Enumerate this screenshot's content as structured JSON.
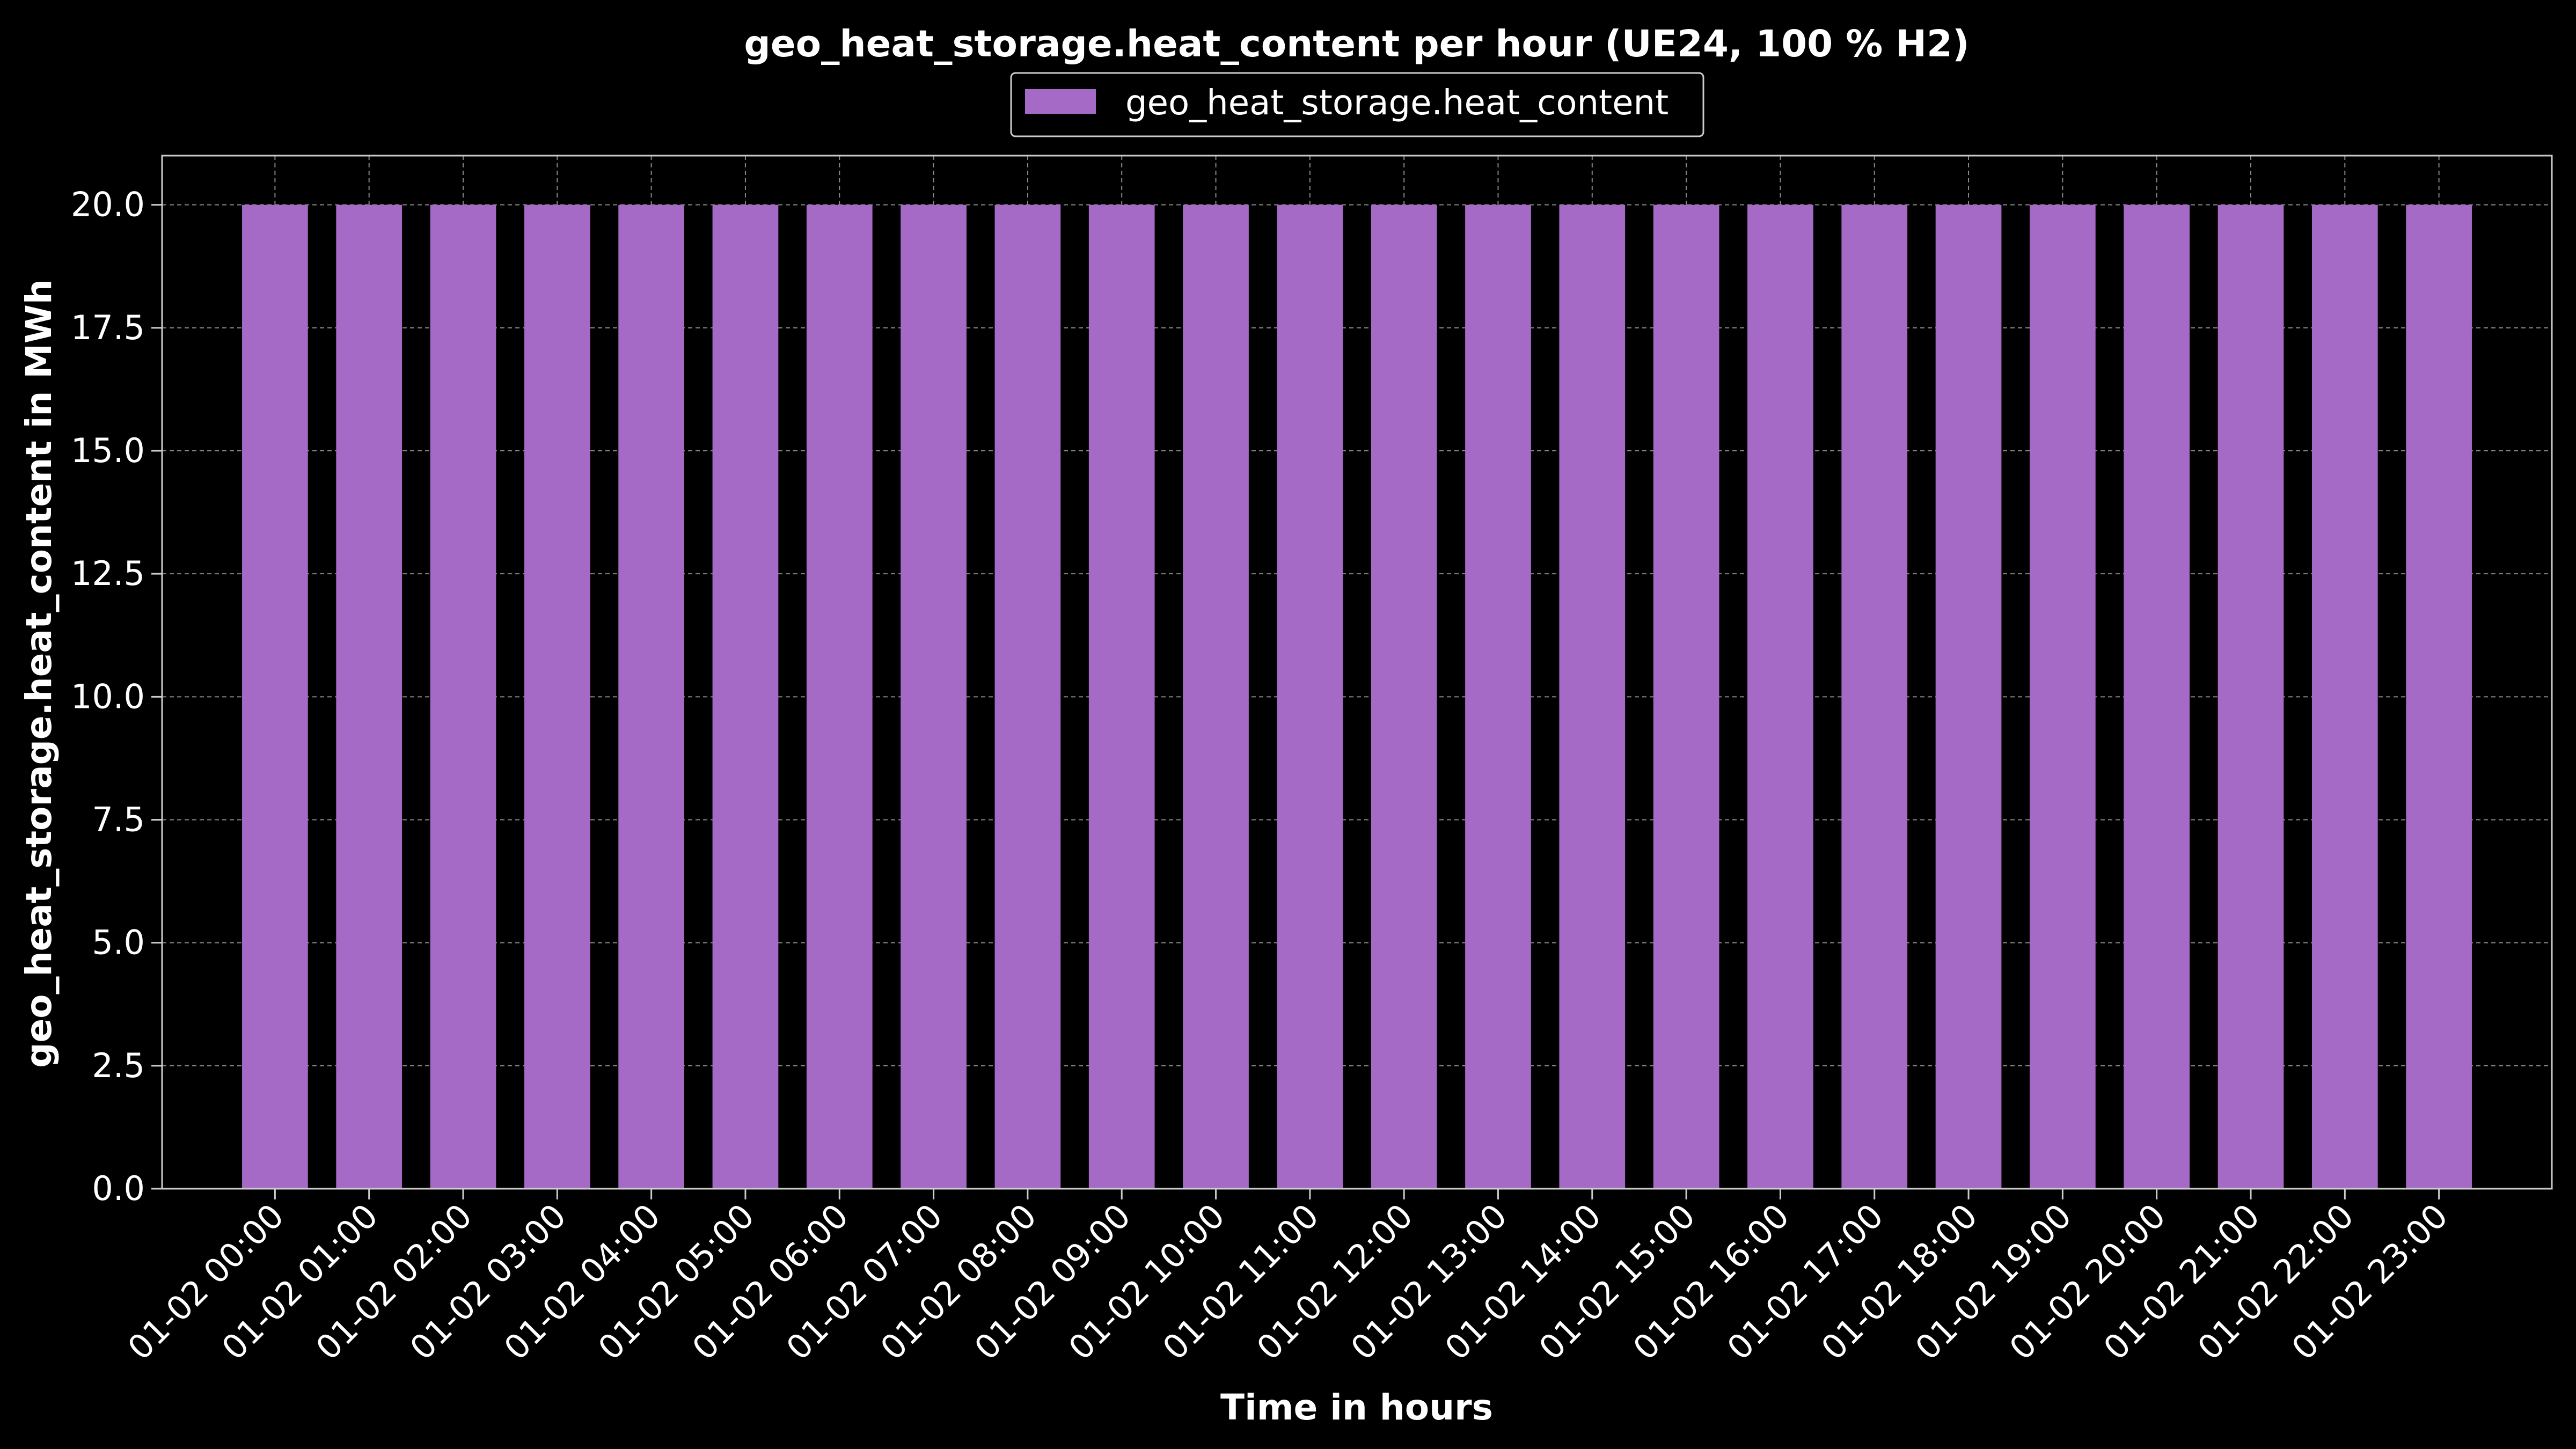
{
  "chart_data": {
    "type": "bar",
    "title": "geo_heat_storage.heat_content per hour (UE24, 100 % H2)",
    "xlabel": "Time in hours",
    "ylabel": "geo_heat_storage.heat_content in MWh",
    "ylim": [
      0,
      21
    ],
    "yticks": [
      "0.0",
      "2.5",
      "5.0",
      "7.5",
      "10.0",
      "12.5",
      "15.0",
      "17.5",
      "20.0"
    ],
    "categories": [
      "01-02 00:00",
      "01-02 01:00",
      "01-02 02:00",
      "01-02 03:00",
      "01-02 04:00",
      "01-02 05:00",
      "01-02 06:00",
      "01-02 07:00",
      "01-02 08:00",
      "01-02 09:00",
      "01-02 10:00",
      "01-02 11:00",
      "01-02 12:00",
      "01-02 13:00",
      "01-02 14:00",
      "01-02 15:00",
      "01-02 16:00",
      "01-02 17:00",
      "01-02 18:00",
      "01-02 19:00",
      "01-02 20:00",
      "01-02 21:00",
      "01-02 22:00",
      "01-02 23:00"
    ],
    "series": [
      {
        "name": "geo_heat_storage.heat_content",
        "color": "#a569c6",
        "values": [
          20,
          20,
          20,
          20,
          20,
          20,
          20,
          20,
          20,
          20,
          20,
          20,
          20,
          20,
          20,
          20,
          20,
          20,
          20,
          20,
          20,
          20,
          20,
          20
        ]
      }
    ],
    "legend": "top-center",
    "grid": true,
    "colors": {
      "background": "#000000",
      "text": "#ffffff",
      "axes": "#cccccc",
      "grid": "#888888"
    }
  }
}
